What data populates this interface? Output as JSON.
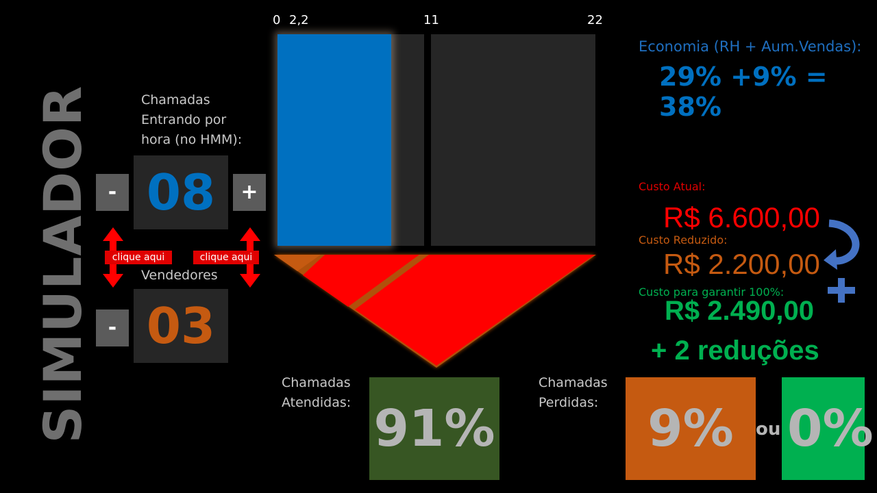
{
  "title": "SIMULADOR",
  "calls": {
    "label": "Chamadas Entrando por hora (no HMM):",
    "value": "08",
    "minus_label": "-",
    "plus_label": "+"
  },
  "sellers": {
    "label": "Vendedores",
    "value": "03",
    "minus_label": "-"
  },
  "hints": {
    "left": "clique aqui",
    "right": "clique aqui"
  },
  "scale": {
    "ticks": [
      "0",
      "2,2",
      "11",
      "22"
    ]
  },
  "economy": {
    "label": "Economia (RH + Aum.Vendas):",
    "value": "29% +9% = 38%"
  },
  "costs": {
    "current_label": "Custo Atual:",
    "current_value": "R$ 6.600,00",
    "reduced_label": "Custo Reduzido:",
    "reduced_value": "R$ 2.200,00",
    "guarantee_label": "Custo para garantir 100%:",
    "guarantee_value": "R$ 2.490,00",
    "extra": "+ 2 reduções"
  },
  "answered": {
    "label_line1": "Chamadas",
    "label_line2": "Atendidas:",
    "value": "91%"
  },
  "lost": {
    "label_line1": "Chamadas",
    "label_line2": "Perdidas:",
    "value": "9%",
    "or": "ou",
    "alt_value": "0%"
  },
  "colors": {
    "blue": "#0070c0",
    "orange": "#c55a11",
    "red": "#ff0000",
    "green": "#00b050",
    "dark_green": "#375623"
  }
}
